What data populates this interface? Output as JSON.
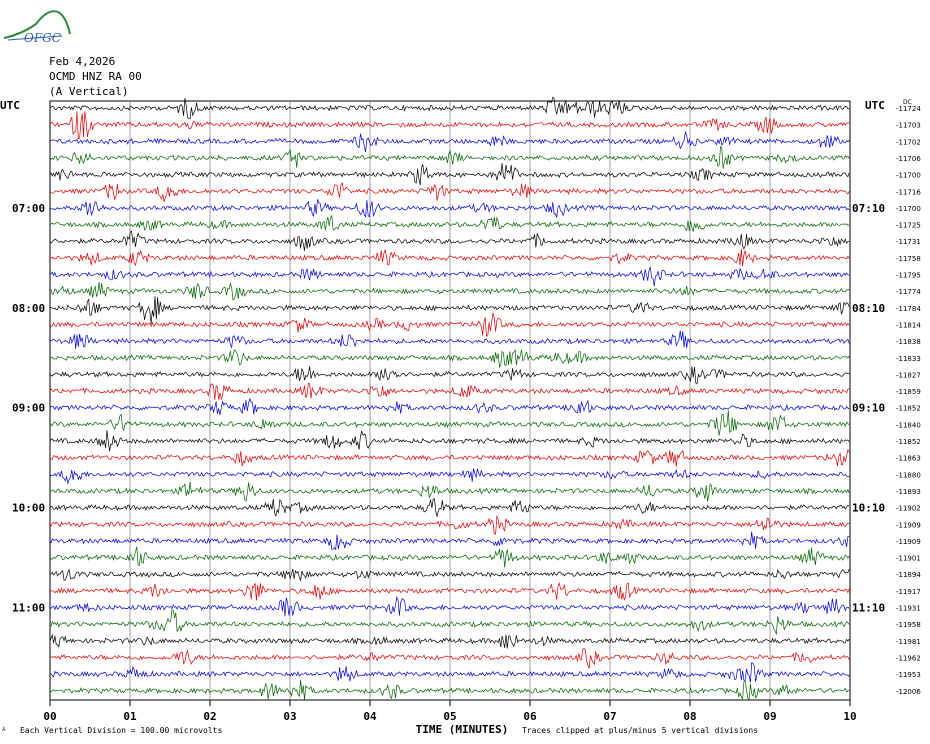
{
  "logo": {
    "text": "OFGC",
    "icon": "mountain-logo-icon"
  },
  "header": {
    "date": "Feb 4,2026",
    "station": "OCMD HNZ RA 00",
    "component": "(A Vertical)"
  },
  "left_axis_title": "UTC",
  "right_axis_title": "UTC",
  "right_offset_title": "DC",
  "left_time_labels": [
    "07:00",
    "08:00",
    "09:00",
    "10:00",
    "11:00"
  ],
  "right_time_labels": [
    "07:10",
    "08:10",
    "09:10",
    "10:10",
    "11:10"
  ],
  "x_axis": {
    "title": "TIME (MINUTES)",
    "ticks": [
      "00",
      "01",
      "02",
      "03",
      "04",
      "05",
      "06",
      "07",
      "08",
      "09",
      "10"
    ]
  },
  "footer": {
    "scale_note": "Each Vertical Division = 100.00 microvolts",
    "clip_note": "Traces clipped at plus/minus 5 vertical divisions"
  },
  "colors": {
    "trace_cycle": [
      "#000000",
      "#e00000",
      "#0000e0",
      "#006400"
    ],
    "grid": "#888888"
  },
  "chart_data": {
    "type": "line",
    "title": "",
    "xlabel": "TIME (MINUTES)",
    "ylabel": "UTC",
    "xlim": [
      0,
      10
    ],
    "trace_count": 36,
    "traces_per_hour": 6,
    "dc_offsets": [
      -11724,
      -11703,
      -11702,
      -11706,
      -11700,
      -11716,
      -11700,
      -11725,
      -11731,
      -11758,
      -11795,
      -11774,
      -11784,
      -11814,
      -11838,
      -11833,
      -11827,
      -11859,
      -11852,
      -11840,
      -11852,
      -11863,
      -11880,
      -11893,
      -11902,
      -11909,
      -11909,
      -11901,
      -11894,
      -11917,
      -11931,
      -11958,
      -11981,
      -11962,
      -11953,
      -12006
    ],
    "grid": true
  }
}
